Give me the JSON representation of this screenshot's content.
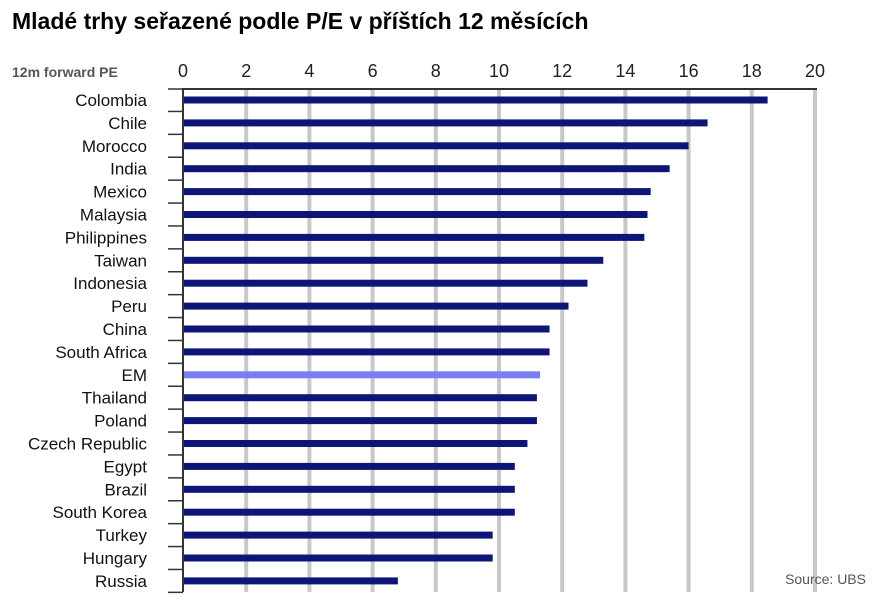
{
  "chart_data": {
    "type": "bar",
    "orientation": "horizontal",
    "title": "Mladé trhy seřazené podle P/E v příštích 12 měsících",
    "xlabel": "12m forward PE",
    "ylabel": "",
    "xlim": [
      0,
      20
    ],
    "xticks": [
      "0",
      "2",
      "4",
      "6",
      "8",
      "10",
      "12",
      "14",
      "16",
      "18",
      "20"
    ],
    "grid": "vertical",
    "source": "Source: UBS",
    "categories": [
      "Colombia",
      "Chile",
      "Morocco",
      "India",
      "Mexico",
      "Malaysia",
      "Philippines",
      "Taiwan",
      "Indonesia",
      "Peru",
      "China",
      "South Africa",
      "EM",
      "Thailand",
      "Poland",
      "Czech Republic",
      "Egypt",
      "Brazil",
      "South Korea",
      "Turkey",
      "Hungary",
      "Russia"
    ],
    "values": [
      18.5,
      16.6,
      16.0,
      15.4,
      14.8,
      14.7,
      14.6,
      13.3,
      12.8,
      12.2,
      11.6,
      11.6,
      11.3,
      11.2,
      11.2,
      10.9,
      10.5,
      10.5,
      10.5,
      9.8,
      9.8,
      6.8
    ],
    "highlight": "EM",
    "colors": {
      "bar": "#0d1678",
      "highlight": "#7b7ef0",
      "grid": "#c8c8c8",
      "axis": "#333333"
    }
  }
}
